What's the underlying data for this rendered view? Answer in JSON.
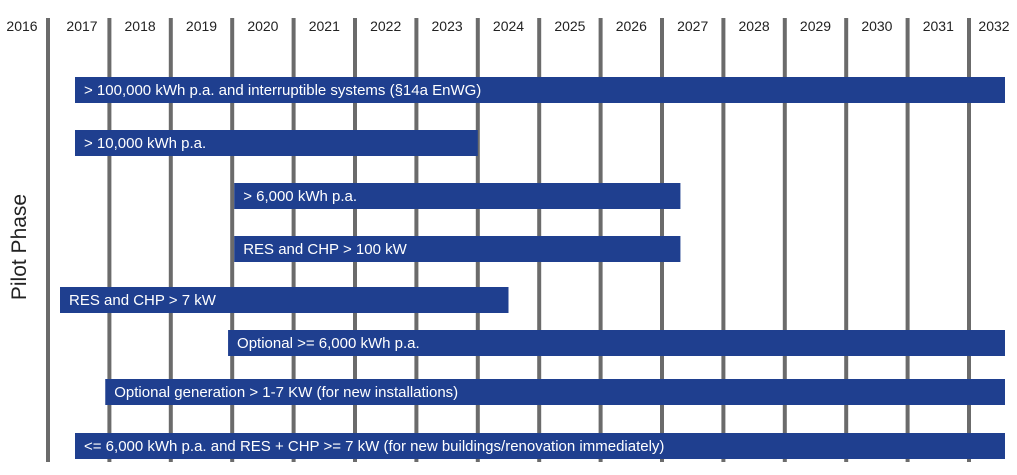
{
  "chart_data": {
    "type": "bar",
    "subtype": "timeline",
    "years": [
      "2016",
      "2017",
      "2018",
      "2019",
      "2020",
      "2021",
      "2022",
      "2023",
      "2024",
      "2025",
      "2026",
      "2027",
      "2028",
      "2029",
      "2030",
      "2031",
      "2032"
    ],
    "side_label": "Pilot Phase",
    "bars": [
      {
        "label": "> 100,000 kWh p.a. and interruptible systems (§14a EnWG)",
        "start": 2017.0,
        "end": 2032.2
      },
      {
        "label": "> 10,000 kWh p.a.",
        "start": 2017.0,
        "end": 2024.0
      },
      {
        "label": "> 6,000 kWh p.a.",
        "start": 2020.0,
        "end": 2027.3
      },
      {
        "label": "RES and CHP > 100 kW",
        "start": 2020.0,
        "end": 2027.3
      },
      {
        "label": "RES and CHP > 7 kW",
        "start": 2016.9,
        "end": 2024.5
      },
      {
        "label": "Optional >= 6,000 kWh p.a.",
        "start": 2019.9,
        "end": 2032.2
      },
      {
        "label": "Optional generation > 1-7 KW (for new installations)",
        "start": 2017.9,
        "end": 2032.2
      },
      {
        "label": "<= 6,000 kWh p.a. and RES + CHP >= 7 kW (for new buildings/renovation immediately)",
        "start": 2017.0,
        "end": 2032.2
      }
    ],
    "colors": {
      "bar": "#1f3f8f",
      "bar_text": "#ffffff",
      "gridline": "#6b6b6b",
      "text": "#222222"
    }
  }
}
